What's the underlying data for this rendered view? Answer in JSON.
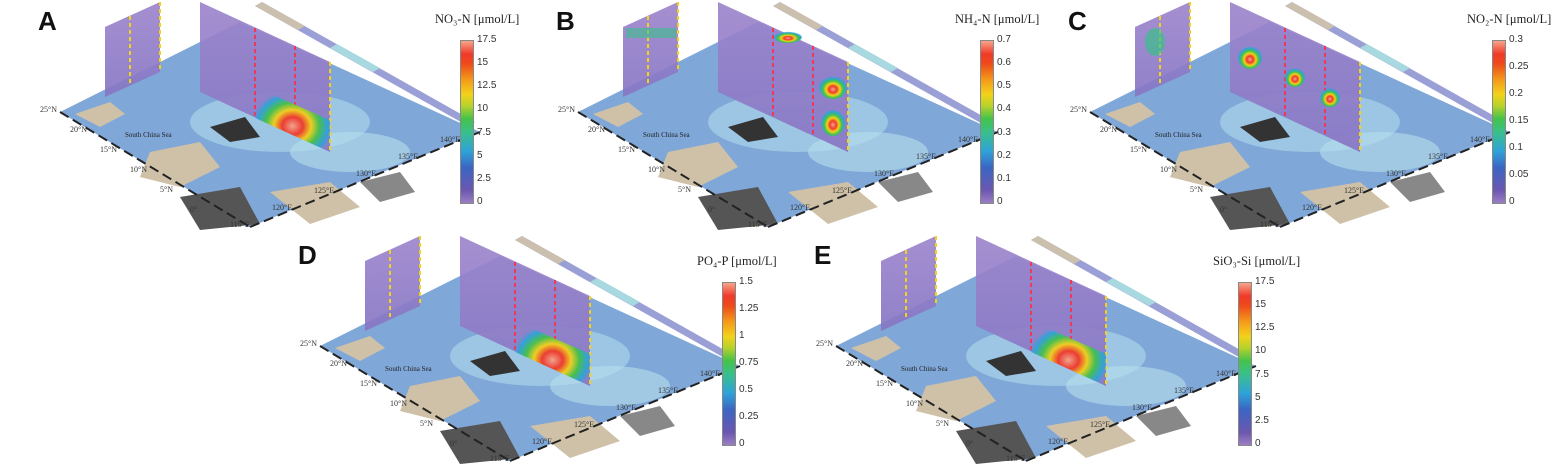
{
  "panels": [
    {
      "letter": "A",
      "title": "NO₃-N [μmol/L]",
      "ticks": [
        "17.5",
        "15",
        "12.5",
        "10",
        "7.5",
        "5",
        "2.5",
        "0"
      ],
      "hot": "no3"
    },
    {
      "letter": "B",
      "title": "NH₄-N [μmol/L]",
      "ticks": [
        "0.7",
        "0.6",
        "0.5",
        "0.4",
        "0.3",
        "0.2",
        "0.1",
        "0"
      ],
      "hot": "nh4"
    },
    {
      "letter": "C",
      "title": "NO₂-N [μmol/L]",
      "ticks": [
        "0.3",
        "0.25",
        "0.2",
        "0.15",
        "0.1",
        "0.05",
        "0"
      ],
      "hot": "no2"
    },
    {
      "letter": "D",
      "title": "PO₄-P [μmol/L]",
      "ticks": [
        "1.5",
        "1.25",
        "1",
        "0.75",
        "0.5",
        "0.25",
        "0"
      ],
      "hot": "po4"
    },
    {
      "letter": "E",
      "title": "SiO₃-Si [μmol/L]",
      "ticks": [
        "17.5",
        "15",
        "12.5",
        "10",
        "7.5",
        "5",
        "2.5",
        "0"
      ],
      "hot": "sio3"
    }
  ],
  "map_labels": {
    "lat": [
      "25°N",
      "20°N",
      "15°N",
      "10°N",
      "5°N",
      "0°"
    ],
    "lon": [
      "115°E",
      "120°E",
      "125°E",
      "130°E",
      "135°E",
      "140°E"
    ],
    "sea": "South China Sea"
  },
  "chart_data": [
    {
      "type": "heatmap",
      "panel": "A",
      "title": "NO₃-N [μmol/L]",
      "colorbar_range": [
        0,
        17.5
      ]
    },
    {
      "type": "heatmap",
      "panel": "B",
      "title": "NH₄-N [μmol/L]",
      "colorbar_range": [
        0,
        0.7
      ]
    },
    {
      "type": "heatmap",
      "panel": "C",
      "title": "NO₂-N [μmol/L]",
      "colorbar_range": [
        0,
        0.3
      ]
    },
    {
      "type": "heatmap",
      "panel": "D",
      "title": "PO₄-P [μmol/L]",
      "colorbar_range": [
        0,
        1.5
      ]
    },
    {
      "type": "heatmap",
      "panel": "E",
      "title": "SiO₃-Si [μmol/L]",
      "colorbar_range": [
        0,
        17.5
      ]
    }
  ]
}
